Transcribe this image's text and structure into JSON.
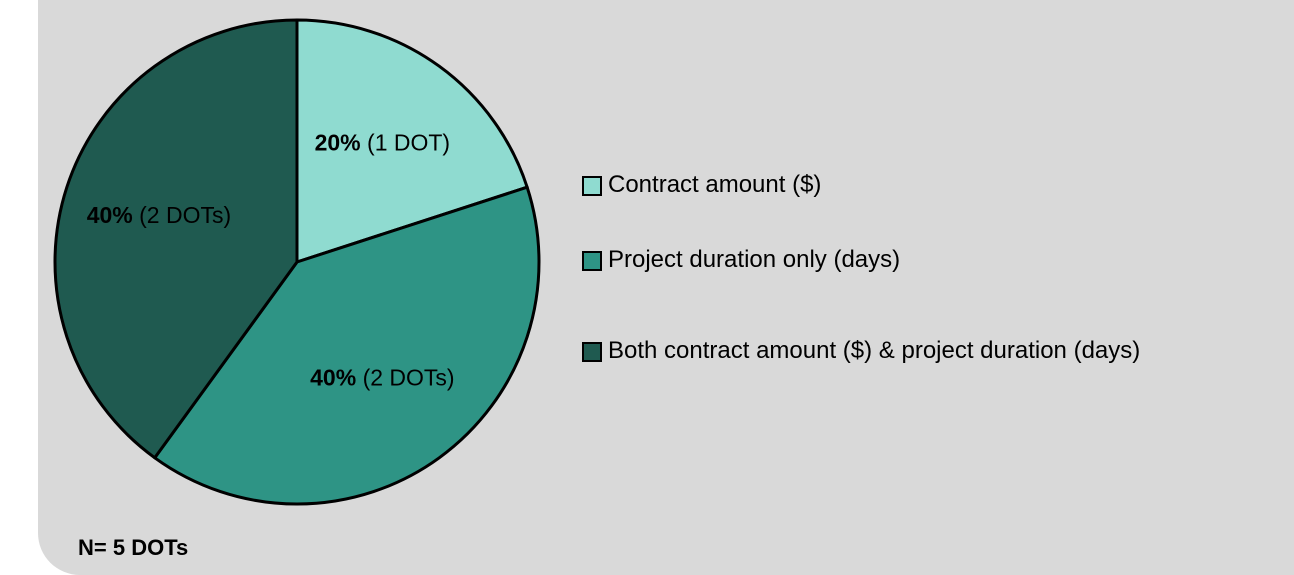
{
  "chart_data": {
    "type": "pie",
    "categories": [
      "Contract amount ($)",
      "Project duration only (days)",
      "Both contract amount ($) & project duration (days)"
    ],
    "values": [
      20,
      40,
      40
    ],
    "value_labels": [
      "20%",
      "40%",
      "40%"
    ],
    "count_labels": [
      "(1 DOT)",
      "(2 DOTs)",
      "(2 DOTs)"
    ],
    "colors": [
      "#8fdbd0",
      "#2e9485",
      "#1f5a50"
    ],
    "annotation": "N= 5 DOTs"
  }
}
